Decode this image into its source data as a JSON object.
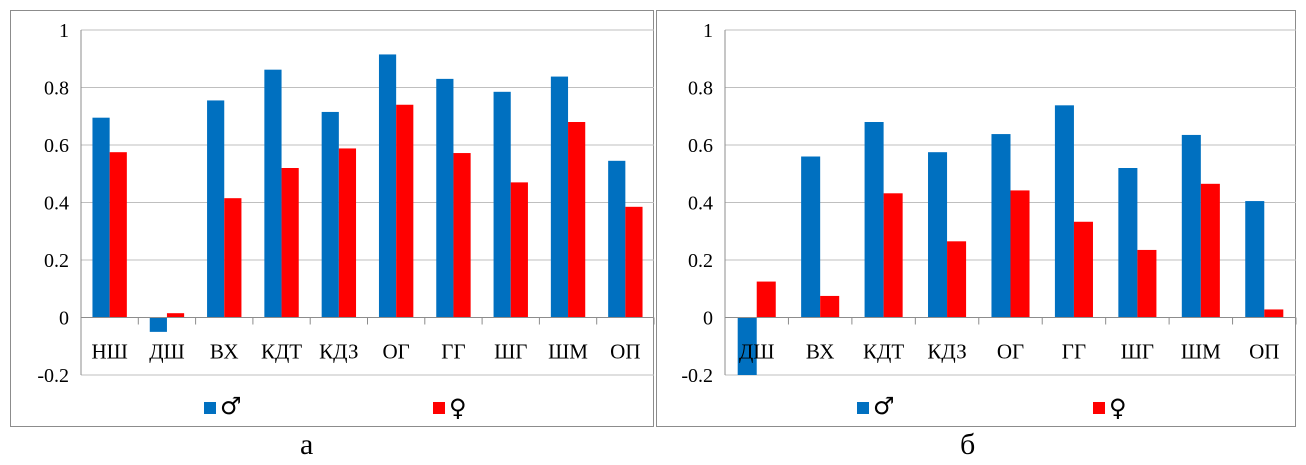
{
  "colors": {
    "male": "#0070c0",
    "female": "#ff0000",
    "grid": "#bfbfbf",
    "axis": "#8c8c8c"
  },
  "legend": {
    "male_symbol": "♂",
    "female_symbol": "♀",
    "position": "bottom"
  },
  "captions": {
    "a": "а",
    "b": "б"
  },
  "chart_data": [
    {
      "type": "bar",
      "title": "",
      "xlabel": "",
      "ylabel": "",
      "ylim": [
        -0.2,
        1
      ],
      "yticks": [
        "1",
        "0.8",
        "0.6",
        "0.4",
        "0.2",
        "0",
        "-0.2"
      ],
      "grid": true,
      "categories": [
        "НШ",
        "ДШ",
        "ВХ",
        "КДТ",
        "КДЗ",
        "ОГ",
        "ГГ",
        "ШГ",
        "ШМ",
        "ОП"
      ],
      "series": [
        {
          "name": "♂",
          "values": [
            0.695,
            -0.05,
            0.755,
            0.862,
            0.715,
            0.915,
            0.83,
            0.785,
            0.838,
            0.545
          ]
        },
        {
          "name": "♀",
          "values": [
            0.575,
            0.015,
            0.415,
            0.52,
            0.588,
            0.74,
            0.572,
            0.47,
            0.68,
            0.385
          ]
        }
      ]
    },
    {
      "type": "bar",
      "title": "",
      "xlabel": "",
      "ylabel": "",
      "ylim": [
        -0.2,
        1
      ],
      "yticks": [
        "1",
        "0.8",
        "0.6",
        "0.4",
        "0.2",
        "0",
        "-0.2"
      ],
      "grid": true,
      "categories": [
        "ДШ",
        "ВХ",
        "КДТ",
        "КДЗ",
        "ОГ",
        "ГГ",
        "ШГ",
        "ШМ",
        "ОП"
      ],
      "series": [
        {
          "name": "♂",
          "values": [
            -0.2,
            0.56,
            0.68,
            0.575,
            0.638,
            0.738,
            0.52,
            0.635,
            0.405
          ]
        },
        {
          "name": "♀",
          "values": [
            0.125,
            0.075,
            0.432,
            0.265,
            0.442,
            0.333,
            0.235,
            0.465,
            0.028
          ]
        }
      ]
    }
  ]
}
